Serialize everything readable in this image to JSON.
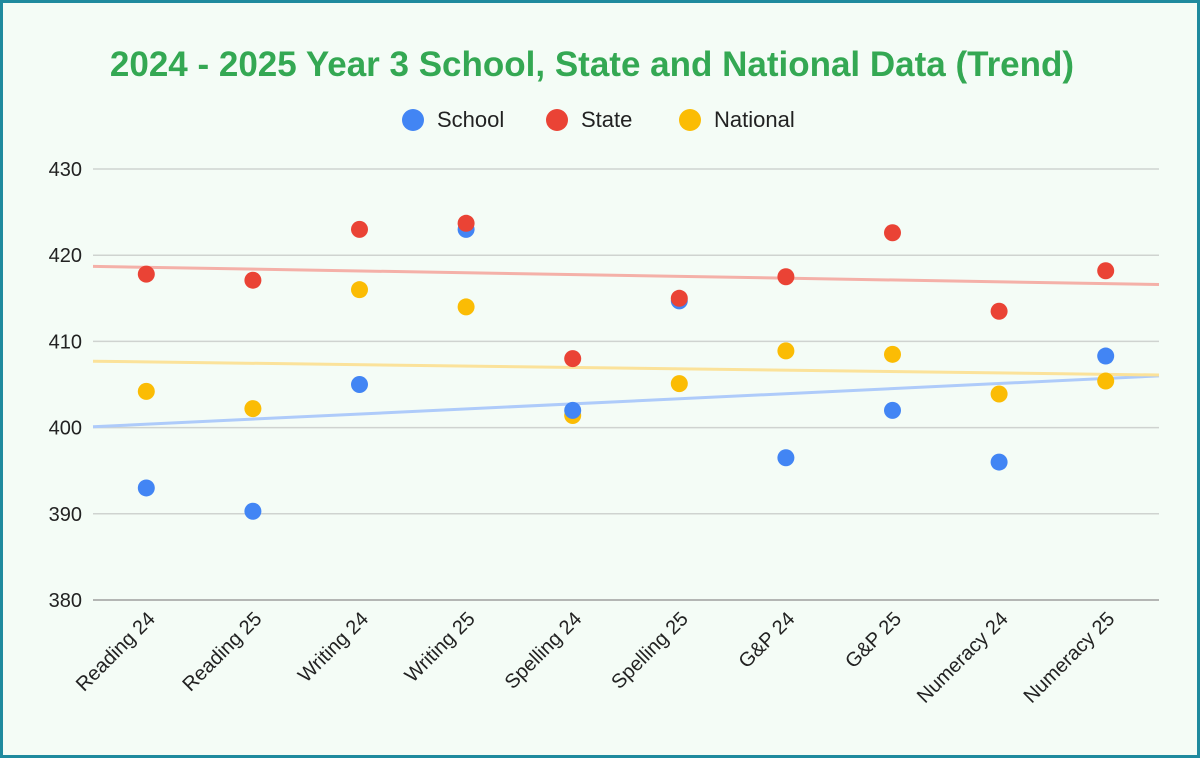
{
  "chart_data": {
    "type": "scatter",
    "title": "2024 - 2025 Year 3 School, State and National Data (Trend)",
    "title_color": "#34a853",
    "categories": [
      "Reading 24",
      "Reading 25",
      "Writing 24",
      "Writing 25",
      "Spelling 24",
      "Spelling 25",
      "G&P 24",
      "G&P 25",
      "Numeracy 24",
      "Numeracy 25"
    ],
    "ylim": [
      380,
      430
    ],
    "yticks": [
      380,
      390,
      400,
      410,
      420,
      430
    ],
    "grid": true,
    "legend_position": "top",
    "series": [
      {
        "name": "School",
        "color": "#4285f4",
        "trend_color": "#aecbfa",
        "values": [
          393,
          390.3,
          405,
          423,
          402,
          414.7,
          396.5,
          402,
          396,
          408.3
        ],
        "trendline": {
          "start": 400.1,
          "end": 406
        }
      },
      {
        "name": "State",
        "color": "#ea4335",
        "trend_color": "#f4b0a8",
        "values": [
          417.8,
          417.1,
          423,
          423.7,
          408,
          415,
          417.5,
          422.6,
          413.5,
          418.2
        ],
        "trendline": {
          "start": 418.7,
          "end": 416.6
        }
      },
      {
        "name": "National",
        "color": "#fbbc04",
        "trend_color": "#fbe29a",
        "values": [
          404.2,
          402.2,
          416,
          414,
          401.4,
          405.1,
          408.9,
          408.5,
          403.9,
          405.4
        ],
        "trendline": {
          "start": 407.7,
          "end": 406.1
        }
      }
    ]
  }
}
